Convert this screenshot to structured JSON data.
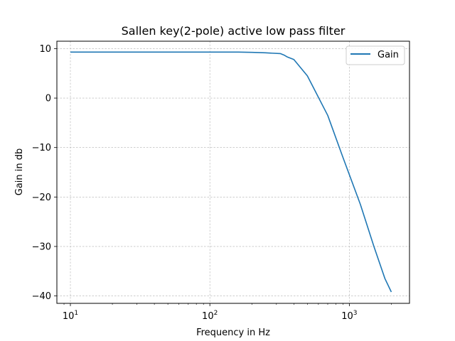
{
  "chart_data": {
    "type": "line",
    "title": "Sallen key(2-pole) active low pass filter",
    "xlabel": "Frequency in Hz",
    "ylabel": "Gain in db",
    "xscale": "log",
    "xlim": [
      8,
      2700
    ],
    "ylim": [
      -41.5,
      11.5
    ],
    "grid": true,
    "legend_position": "top-right",
    "x_ticks": [
      10,
      100,
      1000
    ],
    "x_tick_labels": [
      {
        "base": "10",
        "exp": "1"
      },
      {
        "base": "10",
        "exp": "2"
      },
      {
        "base": "10",
        "exp": "3"
      }
    ],
    "y_ticks": [
      10,
      0,
      -10,
      -20,
      -30,
      -40
    ],
    "y_tick_labels": [
      "10",
      "0",
      "−10",
      "−20",
      "−30",
      "−40"
    ],
    "series": [
      {
        "name": "Gain",
        "color": "#1f77b4",
        "x": [
          10,
          20,
          50,
          100,
          160,
          200,
          250,
          320,
          340,
          360,
          400,
          500,
          700,
          900,
          1200,
          1500,
          1800,
          2000
        ],
        "y": [
          9.3,
          9.3,
          9.3,
          9.3,
          9.3,
          9.25,
          9.15,
          9.0,
          8.7,
          8.3,
          7.8,
          4.5,
          -3.5,
          -12.0,
          -21.5,
          -30.0,
          -36.5,
          -39.2
        ]
      }
    ]
  }
}
